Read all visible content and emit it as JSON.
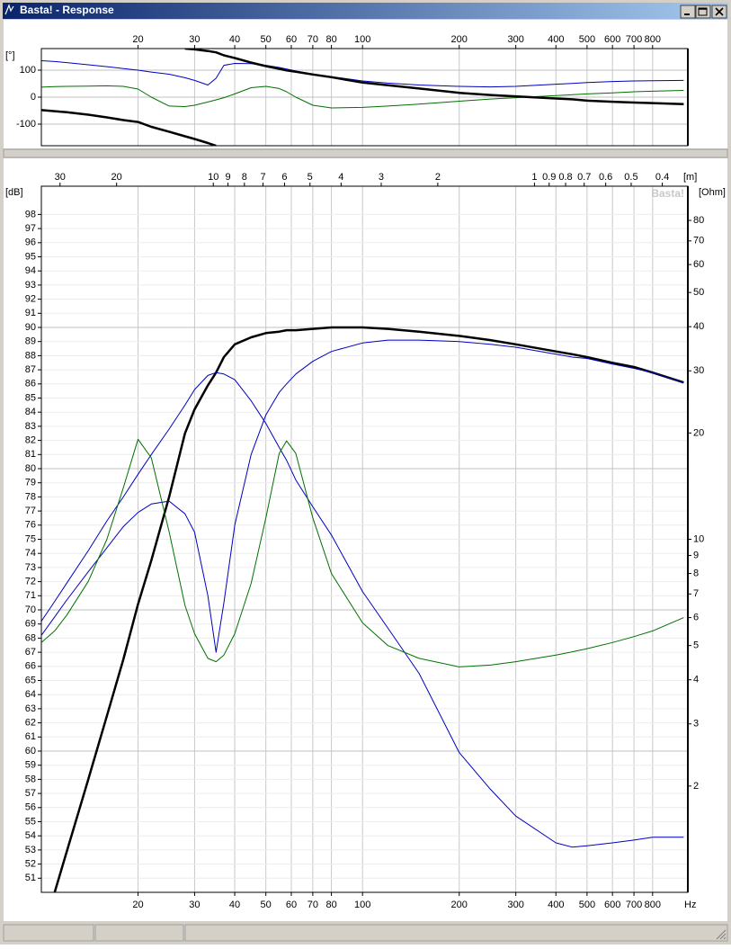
{
  "window": {
    "title": "Basta! - Response"
  },
  "chart_data": [
    {
      "type": "line",
      "ylabel": "[°]",
      "xscale": "log",
      "xlim": [
        10,
        1030
      ],
      "ylim": [
        -180,
        180
      ],
      "xticks": [
        20,
        30,
        40,
        50,
        60,
        70,
        80,
        100,
        200,
        300,
        400,
        500,
        600,
        700,
        800
      ],
      "yticks": [
        -100,
        0,
        100
      ],
      "grid": true,
      "x": [
        10,
        11,
        12,
        14,
        16,
        18,
        20,
        22,
        25,
        28,
        30,
        33,
        35,
        37,
        40,
        45,
        50,
        55,
        58,
        62,
        70,
        80,
        100,
        120,
        150,
        200,
        250,
        300,
        400,
        450,
        500,
        600,
        700,
        800,
        1000
      ],
      "series": [
        {
          "color": "#0000c0",
          "line_width": 1,
          "values": [
            135,
            132,
            128,
            120,
            113,
            106,
            100,
            93,
            85,
            72,
            62,
            45,
            70,
            118,
            125,
            124,
            118,
            110,
            104,
            97,
            86,
            76,
            60,
            52,
            45,
            40,
            38,
            40,
            48,
            51,
            54,
            58,
            60,
            61,
            62
          ]
        },
        {
          "color": "#007000",
          "line_width": 1,
          "values": [
            37,
            39,
            40,
            41,
            42,
            40,
            30,
            0,
            -33,
            -35,
            -30,
            -18,
            -10,
            -2,
            12,
            35,
            40,
            32,
            20,
            0,
            -30,
            -40,
            -38,
            -33,
            -26,
            -15,
            -7,
            -2,
            6,
            9,
            12,
            16,
            20,
            22,
            25
          ]
        },
        {
          "color": "#000000",
          "line_width": 2.5,
          "values": [
            -48,
            -52,
            -56,
            -65,
            -75,
            -85,
            -92,
            -110,
            -128,
            -145,
            -155,
            -170,
            -180,
            null,
            null,
            null,
            null,
            null,
            null,
            null,
            null,
            null,
            null,
            null,
            null,
            null,
            null,
            null,
            null,
            null,
            null,
            null,
            null,
            null,
            null
          ]
        },
        {
          "color": "#000000",
          "line_width": 2.5,
          "values": [
            null,
            null,
            null,
            null,
            null,
            null,
            null,
            null,
            null,
            180,
            177,
            171,
            166,
            155,
            145,
            128,
            115,
            105,
            99,
            94,
            84,
            74,
            54,
            44,
            32,
            16,
            8,
            3,
            -5,
            -8,
            -13,
            -17,
            -20,
            -22,
            -26
          ]
        }
      ]
    },
    {
      "type": "line",
      "ylabel": "[dB]",
      "y2label": "[Ohm]",
      "xlabel": "Hz",
      "x2label": "[m]",
      "watermark": "Basta!",
      "xscale": "log",
      "xlim": [
        10,
        1030
      ],
      "x2scale": "log",
      "x2lim": [
        34.3,
        0.333
      ],
      "ylim": [
        50,
        100
      ],
      "y2scale": "log",
      "y2lim": [
        1,
        100
      ],
      "grid": true,
      "xticks": [
        20,
        30,
        40,
        50,
        60,
        70,
        80,
        100,
        200,
        300,
        400,
        500,
        600,
        700,
        800
      ],
      "x2ticks": [
        30,
        20,
        10,
        9,
        8,
        7,
        6,
        5,
        4,
        3,
        2,
        1,
        0.9,
        0.8,
        0.7,
        0.6,
        0.5,
        0.4
      ],
      "yticks": [
        51,
        52,
        53,
        54,
        55,
        56,
        57,
        58,
        59,
        60,
        61,
        62,
        63,
        64,
        65,
        66,
        67,
        68,
        69,
        70,
        71,
        72,
        73,
        74,
        75,
        76,
        77,
        78,
        79,
        80,
        81,
        82,
        83,
        84,
        85,
        86,
        87,
        88,
        89,
        90,
        91,
        92,
        93,
        94,
        95,
        96,
        97,
        98
      ],
      "y2ticks": [
        2,
        3,
        4,
        5,
        6,
        7,
        8,
        9,
        10,
        20,
        30,
        40,
        50,
        60,
        70,
        80
      ],
      "x": [
        10,
        11,
        12,
        14,
        16,
        18,
        20,
        22,
        25,
        28,
        30,
        33,
        35,
        37,
        40,
        45,
        50,
        55,
        58,
        62,
        70,
        80,
        100,
        120,
        150,
        200,
        250,
        300,
        400,
        450,
        500,
        600,
        700,
        800,
        1000
      ],
      "series": [
        {
          "color": "#000000",
          "line_width": 2.5,
          "values": [
            46.8,
            50,
            52.9,
            58,
            62.5,
            66.5,
            70.4,
            73.5,
            78,
            82.5,
            84.2,
            85.9,
            86.8,
            87.9,
            88.8,
            89.3,
            89.6,
            89.7,
            89.8,
            89.8,
            89.9,
            90,
            90,
            89.9,
            89.7,
            89.4,
            89.1,
            88.8,
            88.3,
            88.1,
            87.9,
            87.5,
            87.2,
            86.8,
            86.1
          ]
        },
        {
          "color": "#0000c0",
          "line_width": 1,
          "values": [
            69.2,
            70.6,
            71.9,
            74.2,
            76.3,
            78,
            79.6,
            81,
            82.8,
            84.5,
            85.6,
            86.6,
            86.8,
            86.7,
            86.3,
            84.8,
            83.2,
            81.5,
            80.6,
            79.2,
            77.3,
            75.3,
            71.3,
            68.7,
            65.5,
            59.9,
            57.3,
            55.4,
            53.5,
            53.2,
            53.3,
            53.5,
            53.7,
            53.9,
            53.9
          ]
        },
        {
          "color": "#0000c0",
          "line_width": 1,
          "values": [
            68.2,
            69.5,
            70.7,
            72.7,
            74.4,
            75.9,
            76.9,
            77.5,
            77.7,
            76.8,
            75.5,
            71,
            67,
            70.5,
            76,
            81,
            83.8,
            85.4,
            86,
            86.7,
            87.6,
            88.3,
            88.9,
            89.1,
            89.1,
            89,
            88.8,
            88.6,
            88.1,
            87.9,
            87.8,
            87.4,
            87.1,
            86.8,
            86.1
          ]
        },
        {
          "color": "#007000",
          "line_width": 1,
          "axis": "y2",
          "values": [
            5.1,
            5.5,
            6.1,
            7.6,
            10,
            14,
            19.2,
            17,
            10.5,
            6.5,
            5.4,
            4.6,
            4.5,
            4.7,
            5.4,
            7.5,
            11.5,
            17.5,
            19,
            17.5,
            11.5,
            8,
            5.8,
            5,
            4.6,
            4.35,
            4.4,
            4.5,
            4.7,
            4.8,
            4.9,
            5.1,
            5.3,
            5.5,
            6
          ]
        }
      ]
    }
  ]
}
